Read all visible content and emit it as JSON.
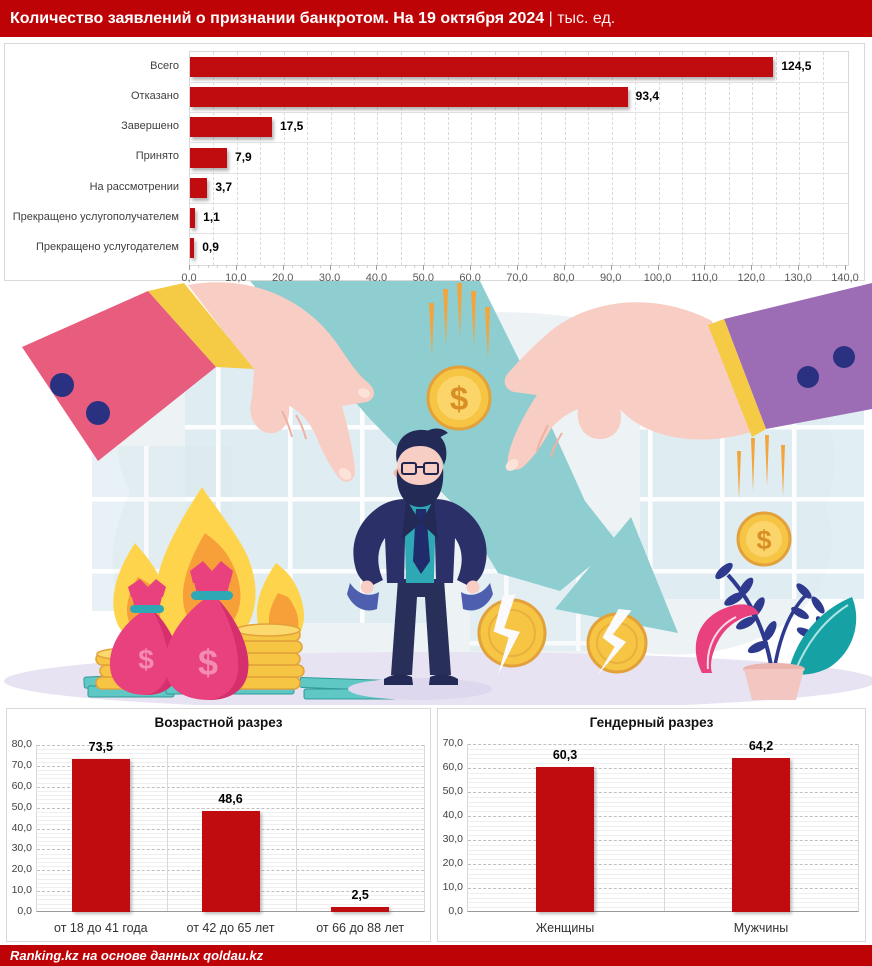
{
  "header": {
    "title": "Количество заявлений о признании банкротом. На 19 октября 2024",
    "subtitle": " | тыс. ед."
  },
  "footer": {
    "credit": "Ranking.kz на основе данных qoldau.kz"
  },
  "colors": {
    "accent_red": "#bd0306",
    "bar_red": "#c00b0f"
  },
  "chart_data": [
    {
      "id": "applications_status",
      "type": "bar",
      "orientation": "horizontal",
      "categories": [
        "Всего",
        "Отказано",
        "Завершено",
        "Принято",
        "На рассмотрении",
        "Прекращено услугополучателем",
        "Прекращено услугодателем"
      ],
      "values": [
        124.5,
        93.4,
        17.5,
        7.9,
        3.7,
        1.1,
        0.9
      ],
      "labels": [
        "124,5",
        "93,4",
        "17,5",
        "7,9",
        "3,7",
        "1,1",
        "0,9"
      ],
      "xlim": [
        0,
        140
      ],
      "tick_step": 10,
      "minor_step": 5,
      "grid": true,
      "legend": false
    },
    {
      "id": "age_breakdown",
      "type": "bar",
      "orientation": "vertical",
      "title": "Возрастной разрез",
      "categories": [
        "от 18 до 41 года",
        "от 42 до 65 лет",
        "от 66 до 88 лет"
      ],
      "values": [
        73.5,
        48.6,
        2.5
      ],
      "labels": [
        "73,5",
        "48,6",
        "2,5"
      ],
      "ylim": [
        0,
        80
      ],
      "tick_step": 10,
      "grid": true,
      "legend": false
    },
    {
      "id": "gender_breakdown",
      "type": "bar",
      "orientation": "vertical",
      "title": "Гендерный разрез",
      "categories": [
        "Женщины",
        "Мужчины"
      ],
      "values": [
        60.3,
        64.2
      ],
      "labels": [
        "60,3",
        "64,2"
      ],
      "ylim": [
        0,
        70
      ],
      "tick_step": 10,
      "grid": true,
      "legend": false
    }
  ]
}
